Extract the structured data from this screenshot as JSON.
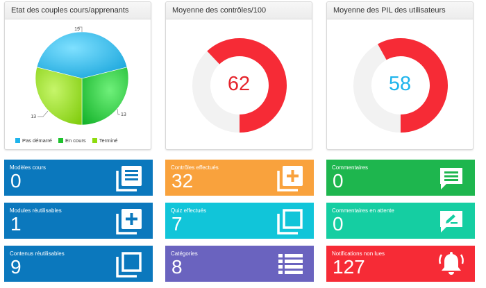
{
  "panels": {
    "pie": {
      "title": "Etat des couples cours/apprenants",
      "labels": [
        "19",
        "13",
        "13"
      ],
      "legend": [
        "Pas démarré",
        "En cours",
        "Terminé"
      ]
    },
    "controles": {
      "title": "Moyenne des contrôles/100",
      "value": "62"
    },
    "pil": {
      "title": "Moyenne des PIL des utilisateurs",
      "value": "58"
    }
  },
  "chart_data": {
    "type": "pie",
    "categories": [
      "Pas démarré",
      "En cours",
      "Terminé"
    ],
    "values": [
      19,
      13,
      13
    ],
    "colors": [
      "#1eb4ec",
      "#1ec32d",
      "#8edb0e"
    ],
    "legend_position": "bottom"
  },
  "gauges": [
    {
      "name": "Moyenne des contrôles/100",
      "value": 62,
      "max": 100,
      "fill_color": "#f62b36",
      "track_color": "#f2f2f2",
      "text_color": "#e5242c"
    },
    {
      "name": "Moyenne des PIL des utilisateurs",
      "value": 58,
      "max": 100,
      "fill_color": "#f62b36",
      "track_color": "#f2f2f2",
      "text_color": "#1eb4ec"
    }
  ],
  "tiles": {
    "modeles_cours": {
      "label": "Modèles cours",
      "value": "0",
      "icon": "list-document-icon",
      "color": "#0b78bd"
    },
    "modules_reutilisables": {
      "label": "Modules réutilisables",
      "value": "1",
      "icon": "add-stack-icon",
      "color": "#0b78bd"
    },
    "contenus_reutilisables": {
      "label": "Contenus réutilisables",
      "value": "9",
      "icon": "stack-icon",
      "color": "#0b78bd"
    },
    "controles_effectues": {
      "label": "Contrôles effectués",
      "value": "32",
      "icon": "add-stack-icon",
      "color": "#f9a23d"
    },
    "quiz_effectues": {
      "label": "Quiz effectués",
      "value": "7",
      "icon": "stack-icon",
      "color": "#11c5d9"
    },
    "categories": {
      "label": "Catégories",
      "value": "8",
      "icon": "list-icon",
      "color": "#6a63bf"
    },
    "commentaires": {
      "label": "Commentaires",
      "value": "0",
      "icon": "comment-icon",
      "color": "#1eb64e"
    },
    "commentaires_attente": {
      "label": "Commentaires en attente",
      "value": "0",
      "icon": "comment-edit-icon",
      "color": "#15cea2"
    },
    "notifications": {
      "label": "Notifications non lues",
      "value": "127",
      "icon": "bell-icon",
      "color": "#f62b36"
    }
  }
}
